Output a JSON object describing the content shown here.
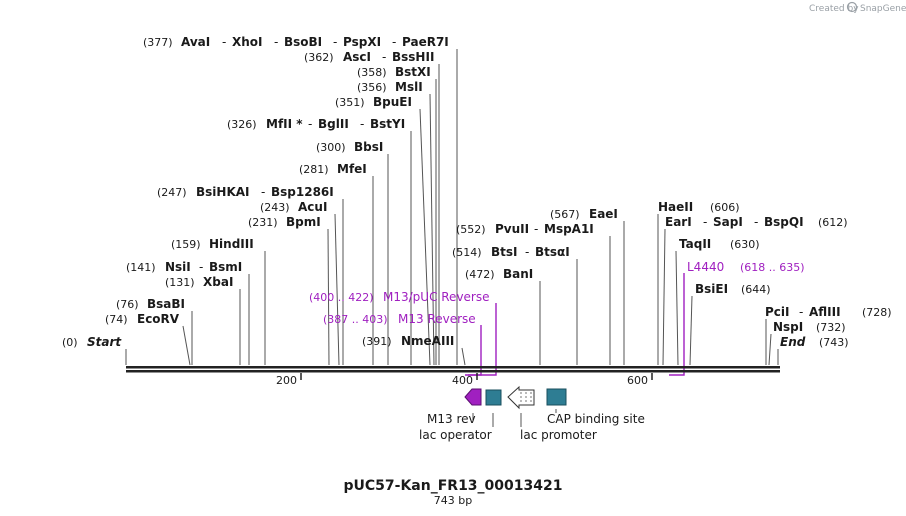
{
  "title": "pUC57-Kan_FR13_00013421",
  "length_label": "743 bp",
  "credit": "Created by",
  "brand": "SnapGene",
  "colors": {
    "primer": "#a020c0",
    "feature": "#2e7d93",
    "m13rev": "#a020c0"
  },
  "ticks": [
    "200",
    "400",
    "600"
  ],
  "enzyme_rows": [
    {
      "pos": "(377)",
      "names": [
        "AvaI",
        "XhoI",
        "BsoBI",
        "PspXI",
        "PaeR7I"
      ]
    },
    {
      "pos": "(362)",
      "names": [
        "AscI",
        "BssHII"
      ]
    },
    {
      "pos": "(358)",
      "names": [
        "BstXI"
      ]
    },
    {
      "pos": "(356)",
      "names": [
        "MslI"
      ]
    },
    {
      "pos": "(351)",
      "names": [
        "BpuEI"
      ]
    },
    {
      "pos": "(326)",
      "names": [
        "MfII *",
        "BglII",
        "BstYI"
      ]
    },
    {
      "pos": "(300)",
      "names": [
        "BbsI"
      ]
    },
    {
      "pos": "(281)",
      "names": [
        "MfeI"
      ]
    },
    {
      "pos": "(247)",
      "names": [
        "BsiHKAI",
        "Bsp1286I"
      ]
    },
    {
      "pos": "(243)",
      "names": [
        "AcuI"
      ]
    },
    {
      "pos": "(231)",
      "names": [
        "BpmI"
      ]
    },
    {
      "pos": "(159)",
      "names": [
        "HindIII"
      ]
    },
    {
      "pos": "(141)",
      "names": [
        "NsiI",
        "BsmI"
      ]
    },
    {
      "pos": "(131)",
      "names": [
        "XbaI"
      ]
    },
    {
      "pos": "(76)",
      "names": [
        "BsaBI"
      ]
    },
    {
      "pos": "(74)",
      "names": [
        "EcoRV"
      ]
    },
    {
      "pos": "(0)",
      "names": [
        "Start"
      ]
    },
    {
      "pos": "(391)",
      "names": [
        "NmeAIII"
      ]
    },
    {
      "pos": "(472)",
      "names": [
        "BanI"
      ]
    },
    {
      "pos": "(514)",
      "names": [
        "BtsI",
        "BtsαI"
      ]
    },
    {
      "pos": "(552)",
      "names": [
        "PvuII",
        "MspA1I"
      ]
    },
    {
      "pos": "(567)",
      "names": [
        "EaeI"
      ]
    },
    {
      "pos": "(606)",
      "names": [
        "HaeII"
      ]
    },
    {
      "pos": "(612)",
      "names": [
        "EarI",
        "SapI",
        "BspQI"
      ]
    },
    {
      "pos": "(630)",
      "names": [
        "TaqII"
      ]
    },
    {
      "pos": "(644)",
      "names": [
        "BsiEI"
      ]
    },
    {
      "pos": "(728)",
      "names": [
        "PciI",
        "AflIII"
      ]
    },
    {
      "pos": "(732)",
      "names": [
        "NspI"
      ]
    },
    {
      "pos": "(743)",
      "names": [
        "End"
      ]
    }
  ],
  "primers": [
    {
      "name": "M13/pUC Reverse",
      "range": "(400 .. 422)"
    },
    {
      "name": "M13 Reverse",
      "range": "(387 .. 403)"
    },
    {
      "name": "L4440",
      "range": "(618 .. 635)"
    }
  ],
  "features": [
    "M13 rev",
    "lac operator",
    "lac promoter",
    "CAP binding site"
  ]
}
